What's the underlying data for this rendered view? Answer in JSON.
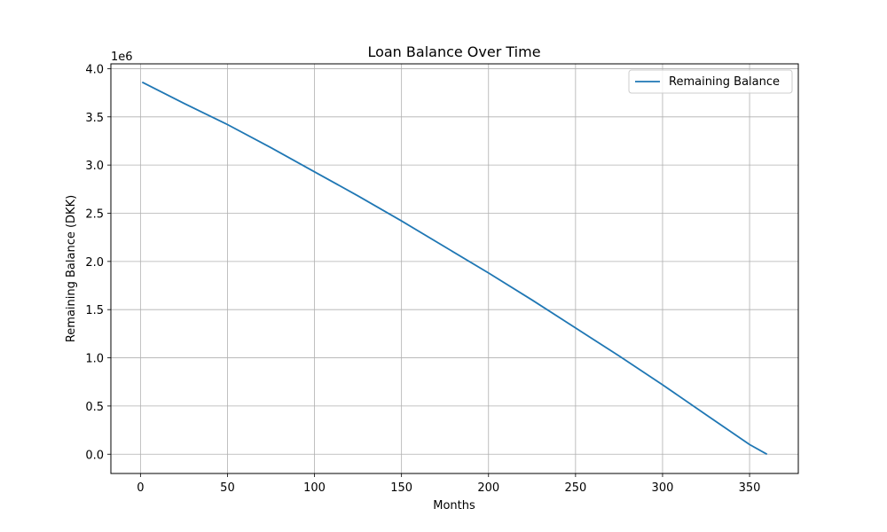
{
  "chart_data": {
    "type": "line",
    "title": "Loan Balance Over Time",
    "xlabel": "Months",
    "ylabel": "Remaining Balance (DKK)",
    "y_offset_label": "1e6",
    "xlim": [
      -17,
      378
    ],
    "ylim": [
      -200000,
      4050000
    ],
    "xticks": [
      0,
      50,
      100,
      150,
      200,
      250,
      300,
      350
    ],
    "yticks": [
      0,
      500000,
      1000000,
      1500000,
      2000000,
      2500000,
      3000000,
      3500000,
      4000000
    ],
    "xtick_labels": [
      "0",
      "50",
      "100",
      "150",
      "200",
      "250",
      "300",
      "350"
    ],
    "ytick_labels": [
      "0.0",
      "0.5",
      "1.0",
      "1.5",
      "2.0",
      "2.5",
      "3.0",
      "3.5",
      "4.0"
    ],
    "grid": true,
    "legend_position": "top-right",
    "series": [
      {
        "name": "Remaining Balance",
        "color": "#1f77b4",
        "x": [
          1,
          25,
          50,
          75,
          100,
          125,
          150,
          175,
          200,
          225,
          250,
          275,
          300,
          325,
          350,
          360
        ],
        "y": [
          3860000,
          3640000,
          3420000,
          3180000,
          2930000,
          2680000,
          2420000,
          2150000,
          1880000,
          1600000,
          1310000,
          1020000,
          720000,
          410000,
          100000,
          0
        ]
      }
    ]
  }
}
